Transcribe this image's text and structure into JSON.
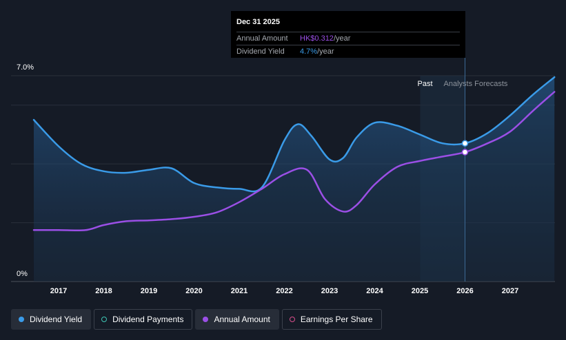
{
  "chart_data": {
    "type": "line",
    "y_axis": {
      "max_label": "7.0%",
      "min_label": "0%",
      "ylim": [
        0,
        7
      ]
    },
    "x_ticks": [
      "2017",
      "2018",
      "2019",
      "2020",
      "2021",
      "2022",
      "2023",
      "2024",
      "2025",
      "2026",
      "2027"
    ],
    "regions": {
      "past_label": "Past",
      "forecast_label": "Analysts Forecasts"
    },
    "series": [
      {
        "name": "Dividend Yield",
        "color": "#3a9be8",
        "points": [
          [
            2016.45,
            5.5
          ],
          [
            2017.0,
            4.6
          ],
          [
            2017.5,
            4.0
          ],
          [
            2018.0,
            3.75
          ],
          [
            2018.5,
            3.7
          ],
          [
            2019.0,
            3.8
          ],
          [
            2019.5,
            3.85
          ],
          [
            2020.0,
            3.35
          ],
          [
            2020.5,
            3.2
          ],
          [
            2021.0,
            3.15
          ],
          [
            2021.5,
            3.2
          ],
          [
            2022.0,
            4.8
          ],
          [
            2022.3,
            5.35
          ],
          [
            2022.6,
            4.95
          ],
          [
            2023.0,
            4.15
          ],
          [
            2023.3,
            4.2
          ],
          [
            2023.6,
            4.9
          ],
          [
            2024.0,
            5.4
          ],
          [
            2024.5,
            5.3
          ],
          [
            2025.0,
            5.0
          ],
          [
            2025.5,
            4.7
          ],
          [
            2026.0,
            4.7
          ],
          [
            2026.5,
            5.05
          ],
          [
            2027.0,
            5.65
          ],
          [
            2027.5,
            6.35
          ],
          [
            2027.98,
            6.95
          ]
        ]
      },
      {
        "name": "Annual Amount",
        "color": "#9b4fe6",
        "points": [
          [
            2016.45,
            1.75
          ],
          [
            2017.0,
            1.75
          ],
          [
            2017.6,
            1.75
          ],
          [
            2018.0,
            1.92
          ],
          [
            2018.5,
            2.05
          ],
          [
            2019.0,
            2.08
          ],
          [
            2019.5,
            2.12
          ],
          [
            2020.0,
            2.2
          ],
          [
            2020.5,
            2.35
          ],
          [
            2021.0,
            2.7
          ],
          [
            2021.5,
            3.15
          ],
          [
            2022.0,
            3.65
          ],
          [
            2022.5,
            3.8
          ],
          [
            2022.9,
            2.8
          ],
          [
            2023.3,
            2.38
          ],
          [
            2023.6,
            2.6
          ],
          [
            2024.0,
            3.3
          ],
          [
            2024.5,
            3.9
          ],
          [
            2025.0,
            4.1
          ],
          [
            2025.5,
            4.25
          ],
          [
            2026.0,
            4.4
          ],
          [
            2026.5,
            4.7
          ],
          [
            2027.0,
            5.1
          ],
          [
            2027.5,
            5.8
          ],
          [
            2027.98,
            6.45
          ]
        ]
      }
    ],
    "highlight_x": 2026.0,
    "highlight_points": [
      4.7,
      4.4
    ]
  },
  "tooltip": {
    "date": "Dec 31 2025",
    "rows": [
      {
        "label": "Annual Amount",
        "value": "HK$0.312",
        "unit": "/year",
        "color": "#9b4fe6"
      },
      {
        "label": "Dividend Yield",
        "value": "4.7%",
        "unit": "/year",
        "color": "#3a9be8"
      }
    ]
  },
  "legend": [
    {
      "label": "Dividend Yield",
      "color": "#3a9be8",
      "style": "filled",
      "active": true
    },
    {
      "label": "Dividend Payments",
      "color": "#3fc7b5",
      "style": "hollow",
      "active": false
    },
    {
      "label": "Annual Amount",
      "color": "#9b4fe6",
      "style": "filled",
      "active": true
    },
    {
      "label": "Earnings Per Share",
      "color": "#d94f8c",
      "style": "hollow",
      "active": false
    }
  ]
}
